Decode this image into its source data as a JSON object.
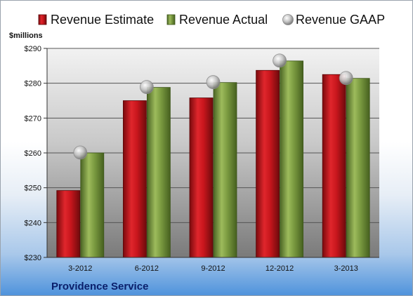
{
  "chart_data": {
    "type": "bar",
    "title": "",
    "xlabel": "",
    "ylabel": "",
    "unit_label": "$millions",
    "company": "Providence Service",
    "categories": [
      "3-2012",
      "6-2012",
      "9-2012",
      "12-2012",
      "3-2013"
    ],
    "ylim": [
      230,
      290
    ],
    "yticks": [
      230,
      240,
      250,
      260,
      270,
      280,
      290
    ],
    "ytick_labels": [
      "$230",
      "$240",
      "$250",
      "$260",
      "$270",
      "$280",
      "$290"
    ],
    "grid": true,
    "legend_position": "top",
    "series": [
      {
        "name": "Revenue Estimate",
        "kind": "bar",
        "color": "#c8161d",
        "values": [
          249.2,
          275.0,
          275.8,
          283.7,
          282.5
        ]
      },
      {
        "name": "Revenue Actual",
        "kind": "bar",
        "color": "#7a9a40",
        "values": [
          260.0,
          278.8,
          280.2,
          286.4,
          281.4
        ]
      },
      {
        "name": "Revenue GAAP",
        "kind": "marker",
        "color": "#c0c0c0",
        "values": [
          260.1,
          278.9,
          280.3,
          286.5,
          281.5
        ]
      }
    ]
  }
}
